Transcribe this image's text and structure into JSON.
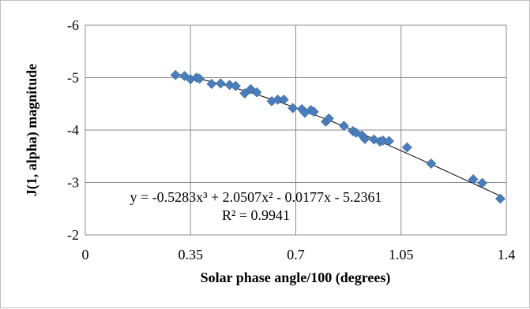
{
  "chart_data": {
    "type": "scatter",
    "title": "",
    "xlabel": "Solar phase angle/100 (degrees)",
    "ylabel": "J(1, alpha) magnitude",
    "xlim": [
      0,
      1.4
    ],
    "ylim": [
      -6,
      -2
    ],
    "y_inverted": true,
    "x_ticks": [
      0,
      0.35,
      0.7,
      1.05,
      1.4
    ],
    "x_tick_labels": [
      "0",
      "0.35",
      "0.7",
      "1.05",
      "1.4"
    ],
    "y_ticks": [
      -6,
      -5,
      -4,
      -3,
      -2
    ],
    "y_tick_labels": [
      "-6",
      "-5",
      "-4",
      "-3",
      "-2"
    ],
    "grid": true,
    "legend": "none",
    "marker": "diamond",
    "marker_color": "#4a7ebb",
    "trendline_color": "#000000",
    "series": [
      {
        "x": [
          0.3,
          0.33,
          0.35,
          0.37,
          0.38,
          0.42,
          0.45,
          0.48,
          0.5,
          0.53,
          0.55,
          0.57,
          0.62,
          0.64,
          0.66,
          0.69,
          0.72,
          0.73,
          0.75,
          0.76,
          0.8,
          0.81,
          0.86,
          0.89,
          0.9,
          0.92,
          0.93,
          0.96,
          0.98,
          0.99,
          1.01,
          1.07,
          1.15,
          1.29,
          1.32,
          1.38
        ],
        "y": [
          -5.05,
          -5.03,
          -4.97,
          -5.0,
          -4.98,
          -4.88,
          -4.89,
          -4.86,
          -4.84,
          -4.7,
          -4.78,
          -4.72,
          -4.55,
          -4.58,
          -4.58,
          -4.42,
          -4.4,
          -4.33,
          -4.38,
          -4.35,
          -4.16,
          -4.22,
          -4.08,
          -3.98,
          -3.95,
          -3.9,
          -3.83,
          -3.82,
          -3.78,
          -3.8,
          -3.79,
          -3.67,
          -3.36,
          -3.06,
          -2.99,
          -2.69
        ]
      }
    ],
    "trendline": {
      "type": "polynomial",
      "order": 3,
      "coefficients": [
        -0.5283,
        2.0507,
        -0.0177,
        -5.2361
      ],
      "x_range": [
        0.3,
        1.38
      ]
    },
    "equation_label": "y = -0.5283x³ + 2.0507x² - 0.0177x - 5.2361",
    "r2_label": "R² = 0.9941"
  }
}
